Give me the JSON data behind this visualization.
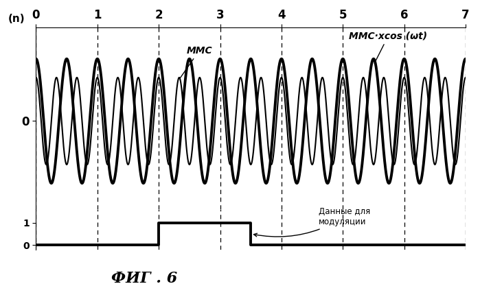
{
  "title_fig": "ФИГ . 6",
  "label_yn": "(n)",
  "label_mmc": "ММС",
  "label_mmc_cos": "ММС·xcos (ωt)",
  "label_data": "Данные для\nмодуляции",
  "xticks": [
    0,
    1,
    2,
    3,
    4,
    5,
    6,
    7
  ],
  "x_max": 7,
  "mmc_amp": 0.42,
  "mmc_freq": 3.0,
  "thick_amp": 0.6,
  "thick_freq": 2.0,
  "data_signal": [
    [
      0,
      2,
      0
    ],
    [
      2,
      3.5,
      1
    ],
    [
      3.5,
      7,
      0
    ]
  ],
  "bg_color": "#ffffff",
  "line_color": "#000000",
  "thin_lw": 1.5,
  "thick_lw": 2.8
}
